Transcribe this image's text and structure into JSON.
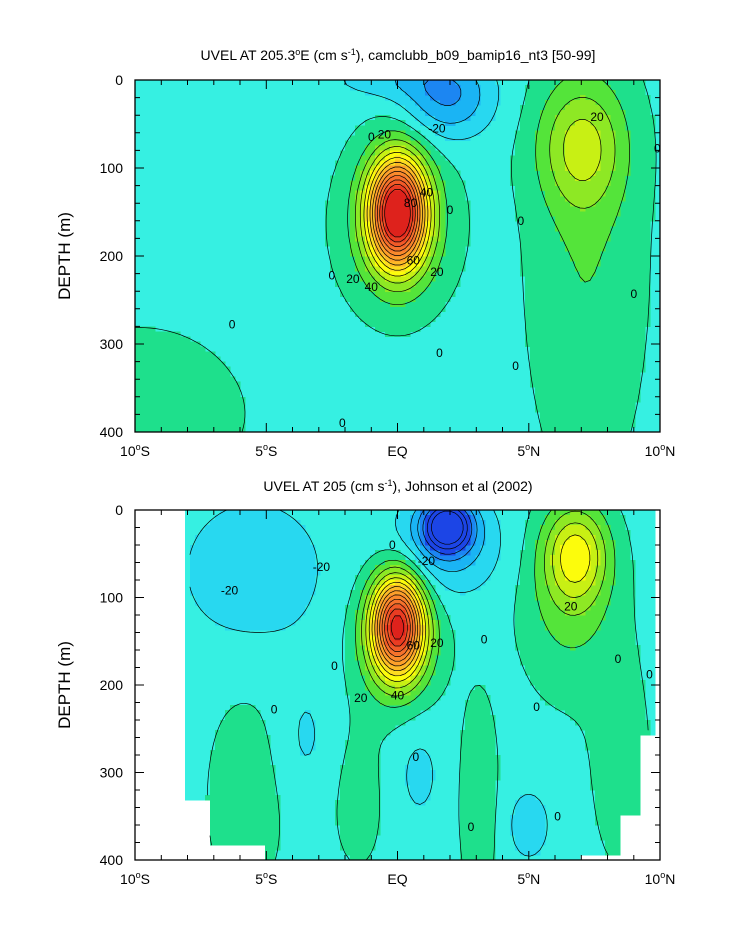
{
  "chart_data": [
    {
      "type": "heatmap",
      "subtype": "filled-contour",
      "title_main": "UVEL AT 205.3",
      "title_deg": "o",
      "title_unit": "E (cm s",
      "title_exp": "-1",
      "title_rest": "), camclubb_b09_bamip16_nt3 [50-99]",
      "ylabel": "DEPTH (m)",
      "xlabel": "",
      "xlim": [
        -10,
        10
      ],
      "ylim": [
        400,
        0
      ],
      "x_ticks": [
        {
          "value": -10,
          "num": "10",
          "deg": "o",
          "hem": "S"
        },
        {
          "value": -5,
          "num": "5",
          "deg": "o",
          "hem": "S"
        },
        {
          "value": 0,
          "num": "EQ",
          "deg": "",
          "hem": ""
        },
        {
          "value": 5,
          "num": "5",
          "deg": "o",
          "hem": "N"
        },
        {
          "value": 10,
          "num": "10",
          "deg": "o",
          "hem": "N"
        }
      ],
      "y_ticks": [
        "0",
        "100",
        "200",
        "300",
        "400"
      ],
      "y_tick_values": [
        0,
        100,
        200,
        300,
        400
      ],
      "contour_interval": 10,
      "contour_labels": [
        {
          "text": "20",
          "lat": -0.5,
          "depth": 62
        },
        {
          "text": "-20",
          "lat": 1.5,
          "depth": 55
        },
        {
          "text": "20",
          "lat": 7.6,
          "depth": 42
        },
        {
          "text": "0",
          "lat": 9.9,
          "depth": 78
        },
        {
          "text": "0",
          "lat": -1.0,
          "depth": 65
        },
        {
          "text": "80",
          "lat": 0.5,
          "depth": 140
        },
        {
          "text": "40",
          "lat": 1.1,
          "depth": 128
        },
        {
          "text": "0",
          "lat": 2.0,
          "depth": 148
        },
        {
          "text": "0",
          "lat": 4.7,
          "depth": 160
        },
        {
          "text": "60",
          "lat": 0.6,
          "depth": 205
        },
        {
          "text": "20",
          "lat": 1.5,
          "depth": 218
        },
        {
          "text": "20",
          "lat": -1.7,
          "depth": 226
        },
        {
          "text": "40",
          "lat": -1.0,
          "depth": 235
        },
        {
          "text": "0",
          "lat": -2.5,
          "depth": 222
        },
        {
          "text": "0",
          "lat": 9.0,
          "depth": 243
        },
        {
          "text": "0",
          "lat": -6.3,
          "depth": 278
        },
        {
          "text": "0",
          "lat": 1.6,
          "depth": 310
        },
        {
          "text": "0",
          "lat": 4.5,
          "depth": 325
        },
        {
          "text": "0",
          "lat": -2.1,
          "depth": 390
        }
      ]
    },
    {
      "type": "heatmap",
      "subtype": "filled-contour",
      "title_main": "UVEL AT 205 (cm s",
      "title_exp": "-1",
      "title_rest": "), Johnson et al (2002)",
      "ylabel": "DEPTH (m)",
      "xlabel": "",
      "xlim": [
        -10,
        10
      ],
      "ylim": [
        400,
        0
      ],
      "x_ticks": [
        {
          "value": -10,
          "num": "10",
          "deg": "o",
          "hem": "S"
        },
        {
          "value": -5,
          "num": "5",
          "deg": "o",
          "hem": "S"
        },
        {
          "value": 0,
          "num": "EQ",
          "deg": "",
          "hem": ""
        },
        {
          "value": 5,
          "num": "5",
          "deg": "o",
          "hem": "N"
        },
        {
          "value": 10,
          "num": "10",
          "deg": "o",
          "hem": "N"
        }
      ],
      "y_ticks": [
        "0",
        "100",
        "200",
        "300",
        "400"
      ],
      "y_tick_values": [
        0,
        100,
        200,
        300,
        400
      ],
      "contour_interval": 10,
      "data_coverage_lat": [
        -8.0,
        9.8
      ],
      "contour_labels": [
        {
          "text": "-20",
          "lat": -6.4,
          "depth": 92
        },
        {
          "text": "-20",
          "lat": -2.9,
          "depth": 65
        },
        {
          "text": "0",
          "lat": -0.2,
          "depth": 40
        },
        {
          "text": "-20",
          "lat": 1.1,
          "depth": 58
        },
        {
          "text": "20",
          "lat": 6.6,
          "depth": 110
        },
        {
          "text": "20",
          "lat": 1.5,
          "depth": 152
        },
        {
          "text": "60",
          "lat": 0.6,
          "depth": 155
        },
        {
          "text": "0",
          "lat": 3.3,
          "depth": 148
        },
        {
          "text": "0",
          "lat": -2.4,
          "depth": 178
        },
        {
          "text": "0",
          "lat": 8.4,
          "depth": 170
        },
        {
          "text": "0",
          "lat": 9.6,
          "depth": 188
        },
        {
          "text": "40",
          "lat": 0.0,
          "depth": 212
        },
        {
          "text": "20",
          "lat": -1.4,
          "depth": 215
        },
        {
          "text": "0",
          "lat": -4.7,
          "depth": 228
        },
        {
          "text": "0",
          "lat": 5.3,
          "depth": 225
        },
        {
          "text": "0",
          "lat": 0.7,
          "depth": 282
        },
        {
          "text": "0",
          "lat": 6.1,
          "depth": 350
        },
        {
          "text": "0",
          "lat": 2.8,
          "depth": 362
        }
      ]
    }
  ],
  "colorscale": [
    {
      "min": -60,
      "color": "#1c45e6"
    },
    {
      "min": -40,
      "color": "#1c86f2"
    },
    {
      "min": -30,
      "color": "#1ab4f4"
    },
    {
      "min": -20,
      "color": "#28d8f0"
    },
    {
      "min": -10,
      "color": "#36f0e2"
    },
    {
      "min": 0,
      "color": "#1ee08c"
    },
    {
      "min": 10,
      "color": "#54e43a"
    },
    {
      "min": 20,
      "color": "#8ee824"
    },
    {
      "min": 30,
      "color": "#c8f014"
    },
    {
      "min": 40,
      "color": "#fcfc0c"
    },
    {
      "min": 50,
      "color": "#fcdc20"
    },
    {
      "min": 60,
      "color": "#fcba26"
    },
    {
      "min": 70,
      "color": "#fca02a"
    },
    {
      "min": 80,
      "color": "#fa8a2c"
    },
    {
      "min": 90,
      "color": "#f6722c"
    },
    {
      "min": 100,
      "color": "#f25a28"
    },
    {
      "min": 110,
      "color": "#ea3c22"
    },
    {
      "min": 120,
      "color": "#de221c"
    }
  ]
}
